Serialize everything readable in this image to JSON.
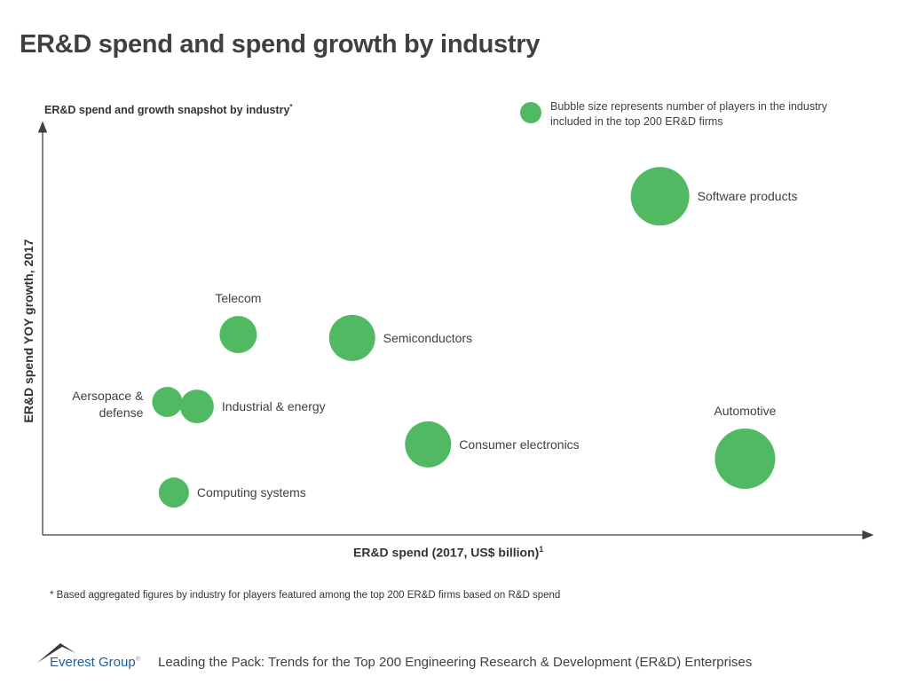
{
  "title": "ER&D spend and spend growth by industry",
  "footnote": "* Based aggregated figures by industry for players featured among the top 200 ER&D firms based on R&D spend",
  "footer": {
    "logo_text": "Everest Group",
    "logo_mark": "®",
    "report_title": "Leading the Pack: Trends for the Top 200 Engineering Research & Development (ER&D) Enterprises"
  },
  "chart_data": {
    "type": "scatter",
    "subtype": "bubble",
    "title": "ER&D spend and growth snapshot by industry",
    "title_marker": "*",
    "xlabel": "ER&D spend (2017, US$ billion)",
    "xlabel_marker": "1",
    "ylabel": "ER&D spend YOY growth, 2017",
    "xlim": [
      0,
      100
    ],
    "ylim": [
      0,
      100
    ],
    "axis_tick_labels_shown": false,
    "grid": false,
    "bubble_color": "#52b963",
    "legend": {
      "text": "Bubble size represents number of players in the industry included in the top 200 ER&D firms",
      "placement": "top-right"
    },
    "points": [
      {
        "label": "Software products",
        "x": 74.8,
        "y": 83.0,
        "size": 33,
        "label_pos": "right"
      },
      {
        "label": "Telecom",
        "x": 23.7,
        "y": 49.1,
        "size": 21,
        "label_pos": "above"
      },
      {
        "label": "Semiconductors",
        "x": 37.5,
        "y": 48.3,
        "size": 26,
        "label_pos": "right"
      },
      {
        "label": "Aersopace & defense",
        "x": 15.1,
        "y": 32.6,
        "size": 17,
        "label_pos": "left"
      },
      {
        "label": "Industrial & energy",
        "x": 18.7,
        "y": 31.5,
        "size": 19,
        "label_pos": "right"
      },
      {
        "label": "Consumer electronics",
        "x": 46.7,
        "y": 22.2,
        "size": 26,
        "label_pos": "right"
      },
      {
        "label": "Automotive",
        "x": 85.1,
        "y": 18.7,
        "size": 34,
        "label_pos": "above"
      },
      {
        "label": "Computing systems",
        "x": 15.9,
        "y": 10.4,
        "size": 17,
        "label_pos": "right"
      }
    ]
  }
}
